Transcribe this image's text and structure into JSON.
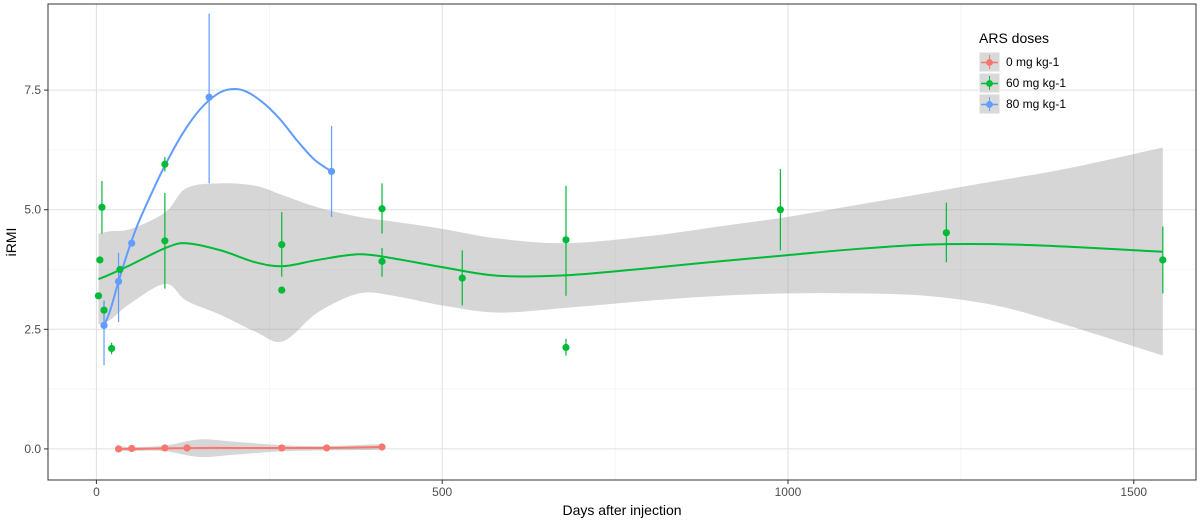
{
  "chart_data": {
    "type": "scatter",
    "xlabel": "Days after injection",
    "ylabel": "iRMI",
    "xlim": [
      -70,
      1590
    ],
    "ylim": [
      -0.65,
      9.3
    ],
    "x_ticks": [
      0,
      500,
      1000,
      1500
    ],
    "x_tick_labels": [
      "0",
      "500",
      "1000",
      "1500"
    ],
    "y_ticks": [
      0,
      2.5,
      5,
      7.5
    ],
    "y_tick_labels": [
      "0.0",
      "2.5",
      "5.0",
      "7.5"
    ],
    "grid": true,
    "legend": {
      "title": "ARS doses",
      "position": "top-right",
      "entries": [
        "0 mg kg-1",
        "60 mg kg-1",
        "80 mg kg-1"
      ]
    },
    "series": [
      {
        "name": "0 mg kg-1",
        "color": "#F8766D",
        "points": [
          {
            "x": 32,
            "y": 0.0
          },
          {
            "x": 51,
            "y": 0.01
          },
          {
            "x": 99,
            "y": 0.02
          },
          {
            "x": 131,
            "y": 0.02
          },
          {
            "x": 268,
            "y": 0.02
          },
          {
            "x": 333,
            "y": 0.02
          },
          {
            "x": 413,
            "y": 0.04
          }
        ],
        "error_bars": [],
        "smooth": [
          [
            32,
            0.0
          ],
          [
            60,
            0.0
          ],
          [
            100,
            0.01
          ],
          [
            150,
            0.02
          ],
          [
            200,
            0.02
          ],
          [
            268,
            0.02
          ],
          [
            333,
            0.02
          ],
          [
            413,
            0.04
          ]
        ],
        "band_upper": [
          [
            32,
            0.05
          ],
          [
            60,
            0.04
          ],
          [
            100,
            0.07
          ],
          [
            150,
            0.2
          ],
          [
            200,
            0.15
          ],
          [
            268,
            0.08
          ],
          [
            333,
            0.06
          ],
          [
            413,
            0.1
          ]
        ],
        "band_lower": [
          [
            32,
            -0.05
          ],
          [
            60,
            -0.04
          ],
          [
            100,
            -0.05
          ],
          [
            150,
            -0.17
          ],
          [
            200,
            -0.12
          ],
          [
            268,
            -0.05
          ],
          [
            333,
            -0.03
          ],
          [
            413,
            -0.02
          ]
        ]
      },
      {
        "name": "60 mg kg-1",
        "color": "#00BA38",
        "points": [
          {
            "x": 3,
            "y": 3.2
          },
          {
            "x": 5,
            "y": 3.95
          },
          {
            "x": 8,
            "y": 5.05
          },
          {
            "x": 11,
            "y": 2.9
          },
          {
            "x": 22,
            "y": 2.1
          },
          {
            "x": 34,
            "y": 3.75
          },
          {
            "x": 99,
            "y": 5.95
          },
          {
            "x": 99,
            "y": 4.35
          },
          {
            "x": 268,
            "y": 4.27
          },
          {
            "x": 268,
            "y": 3.32
          },
          {
            "x": 413,
            "y": 5.02
          },
          {
            "x": 413,
            "y": 3.92
          },
          {
            "x": 529,
            "y": 3.57
          },
          {
            "x": 679,
            "y": 4.37
          },
          {
            "x": 679,
            "y": 2.12
          },
          {
            "x": 989,
            "y": 5.0
          },
          {
            "x": 1229,
            "y": 4.52
          },
          {
            "x": 1542,
            "y": 3.95
          }
        ],
        "error_bars": [
          {
            "x": 8,
            "ymin": 4.5,
            "ymax": 5.6
          },
          {
            "x": 11,
            "ymin": 2.7,
            "ymax": 3.1
          },
          {
            "x": 22,
            "ymin": 1.98,
            "ymax": 2.22
          },
          {
            "x": 99,
            "ymin": 5.8,
            "ymax": 6.1
          },
          {
            "x": 99,
            "ymin": 3.35,
            "ymax": 5.35
          },
          {
            "x": 268,
            "ymin": 3.6,
            "ymax": 4.95
          },
          {
            "x": 413,
            "ymin": 4.5,
            "ymax": 5.55
          },
          {
            "x": 413,
            "ymin": 3.6,
            "ymax": 4.2
          },
          {
            "x": 529,
            "ymin": 3.0,
            "ymax": 4.15
          },
          {
            "x": 679,
            "ymin": 3.2,
            "ymax": 5.5
          },
          {
            "x": 679,
            "ymin": 1.95,
            "ymax": 2.3
          },
          {
            "x": 989,
            "ymin": 4.15,
            "ymax": 5.85
          },
          {
            "x": 1229,
            "ymin": 3.9,
            "ymax": 5.15
          },
          {
            "x": 1542,
            "ymin": 3.25,
            "ymax": 4.65
          }
        ],
        "smooth": [
          [
            3,
            3.55
          ],
          [
            20,
            3.65
          ],
          [
            50,
            3.85
          ],
          [
            100,
            4.2
          ],
          [
            130,
            4.3
          ],
          [
            180,
            4.15
          ],
          [
            230,
            3.9
          ],
          [
            270,
            3.82
          ],
          [
            320,
            3.95
          ],
          [
            380,
            4.07
          ],
          [
            430,
            3.98
          ],
          [
            500,
            3.8
          ],
          [
            580,
            3.62
          ],
          [
            680,
            3.63
          ],
          [
            800,
            3.78
          ],
          [
            900,
            3.92
          ],
          [
            1000,
            4.05
          ],
          [
            1100,
            4.18
          ],
          [
            1200,
            4.27
          ],
          [
            1300,
            4.28
          ],
          [
            1400,
            4.23
          ],
          [
            1542,
            4.12
          ]
        ],
        "band_upper": [
          [
            3,
            4.5
          ],
          [
            20,
            4.55
          ],
          [
            50,
            4.6
          ],
          [
            100,
            4.95
          ],
          [
            130,
            5.45
          ],
          [
            180,
            5.55
          ],
          [
            230,
            5.5
          ],
          [
            270,
            5.3
          ],
          [
            320,
            5.05
          ],
          [
            380,
            4.85
          ],
          [
            430,
            4.75
          ],
          [
            500,
            4.6
          ],
          [
            580,
            4.4
          ],
          [
            680,
            4.3
          ],
          [
            800,
            4.45
          ],
          [
            900,
            4.65
          ],
          [
            1000,
            4.85
          ],
          [
            1100,
            5.1
          ],
          [
            1200,
            5.35
          ],
          [
            1300,
            5.6
          ],
          [
            1400,
            5.85
          ],
          [
            1542,
            6.3
          ]
        ],
        "band_lower": [
          [
            3,
            2.6
          ],
          [
            20,
            2.7
          ],
          [
            50,
            3.05
          ],
          [
            100,
            3.45
          ],
          [
            130,
            3.1
          ],
          [
            180,
            2.8
          ],
          [
            230,
            2.45
          ],
          [
            270,
            2.25
          ],
          [
            320,
            2.85
          ],
          [
            380,
            3.25
          ],
          [
            430,
            3.2
          ],
          [
            500,
            3.0
          ],
          [
            580,
            2.85
          ],
          [
            680,
            2.95
          ],
          [
            800,
            3.1
          ],
          [
            900,
            3.2
          ],
          [
            1000,
            3.25
          ],
          [
            1100,
            3.25
          ],
          [
            1200,
            3.2
          ],
          [
            1300,
            3.0
          ],
          [
            1400,
            2.6
          ],
          [
            1542,
            1.95
          ]
        ]
      },
      {
        "name": "80 mg kg-1",
        "color": "#619CFF",
        "points": [
          {
            "x": 11,
            "y": 2.58
          },
          {
            "x": 32,
            "y": 3.5
          },
          {
            "x": 51,
            "y": 4.3
          },
          {
            "x": 163,
            "y": 7.35
          },
          {
            "x": 340,
            "y": 5.8
          }
        ],
        "error_bars": [
          {
            "x": 11,
            "ymin": 1.75,
            "ymax": 3.1
          },
          {
            "x": 32,
            "ymin": 2.65,
            "ymax": 4.1
          },
          {
            "x": 163,
            "ymin": 5.55,
            "ymax": 9.1
          },
          {
            "x": 340,
            "ymin": 4.85,
            "ymax": 6.75
          }
        ],
        "smooth": [
          [
            11,
            2.58
          ],
          [
            20,
            2.9
          ],
          [
            32,
            3.5
          ],
          [
            45,
            4.1
          ],
          [
            60,
            4.7
          ],
          [
            80,
            5.35
          ],
          [
            100,
            5.95
          ],
          [
            125,
            6.6
          ],
          [
            150,
            7.1
          ],
          [
            175,
            7.42
          ],
          [
            195,
            7.52
          ],
          [
            215,
            7.48
          ],
          [
            240,
            7.25
          ],
          [
            265,
            6.9
          ],
          [
            290,
            6.45
          ],
          [
            315,
            6.05
          ],
          [
            340,
            5.8
          ]
        ],
        "band_upper": [],
        "band_lower": []
      }
    ]
  }
}
